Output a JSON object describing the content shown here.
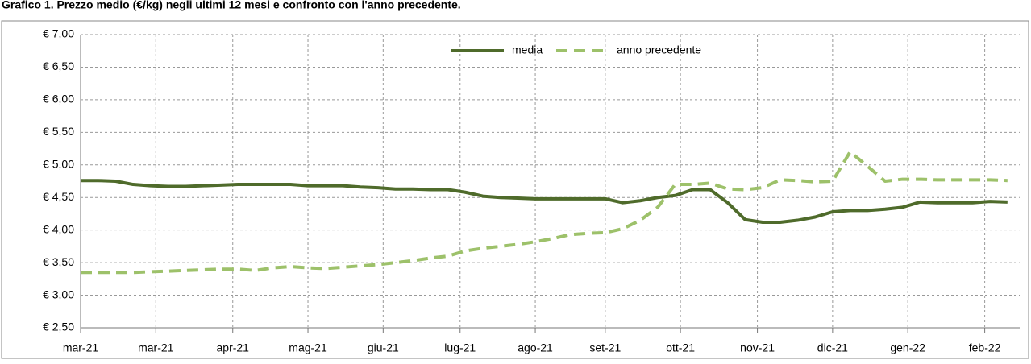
{
  "chart_data": {
    "type": "line",
    "title": "Grafico 1. Prezzo medio (€/kg) negli ultimi 12 mesi e confronto con l'anno precedente.",
    "x": [
      0,
      1,
      2,
      3,
      4,
      5,
      6,
      7,
      8,
      9,
      10,
      11,
      12,
      13,
      14,
      15,
      16,
      17,
      18,
      19,
      20,
      21,
      22,
      23,
      24,
      25,
      26,
      27,
      28,
      29,
      30,
      31,
      32,
      33,
      34,
      35,
      36,
      37,
      38,
      39,
      40,
      41,
      42,
      43,
      44,
      45,
      46,
      47,
      48,
      49,
      50,
      51,
      52,
      53
    ],
    "xlim": [
      0,
      53.7
    ],
    "xticks": [
      {
        "value": 0,
        "label": "mar-21"
      },
      {
        "value": 4.3,
        "label": "mar-21"
      },
      {
        "value": 8.7,
        "label": "apr-21"
      },
      {
        "value": 13,
        "label": "mag-21"
      },
      {
        "value": 17.3,
        "label": "giu-21"
      },
      {
        "value": 21.7,
        "label": "lug-21"
      },
      {
        "value": 26,
        "label": "ago-21"
      },
      {
        "value": 30,
        "label": "set-21"
      },
      {
        "value": 34.3,
        "label": "ott-21"
      },
      {
        "value": 38.7,
        "label": "nov-21"
      },
      {
        "value": 43,
        "label": "dic-21"
      },
      {
        "value": 47.3,
        "label": "gen-22"
      },
      {
        "value": 51.7,
        "label": "feb-22"
      }
    ],
    "ylim": [
      2.5,
      7
    ],
    "yticks": [
      {
        "value": 2.5,
        "label": "€ 2,50"
      },
      {
        "value": 3,
        "label": "€ 3,00"
      },
      {
        "value": 3.5,
        "label": "€ 3,50"
      },
      {
        "value": 4,
        "label": "€ 4,00"
      },
      {
        "value": 4.5,
        "label": "€ 4,50"
      },
      {
        "value": 5,
        "label": "€ 5,00"
      },
      {
        "value": 5.5,
        "label": "€ 5,50"
      },
      {
        "value": 6,
        "label": "€ 6,00"
      },
      {
        "value": 6.5,
        "label": "€ 6,50"
      },
      {
        "value": 7,
        "label": "€ 7,00"
      }
    ],
    "grid": true,
    "legend": "top",
    "series": [
      {
        "name": "media",
        "color": "#4f6b2b",
        "dashed": false,
        "values": [
          4.76,
          4.76,
          4.75,
          4.7,
          4.68,
          4.67,
          4.67,
          4.68,
          4.69,
          4.7,
          4.7,
          4.7,
          4.7,
          4.68,
          4.68,
          4.68,
          4.66,
          4.65,
          4.63,
          4.63,
          4.62,
          4.62,
          4.58,
          4.52,
          4.5,
          4.49,
          4.48,
          4.48,
          4.48,
          4.48,
          4.48,
          4.42,
          4.45,
          4.5,
          4.53,
          4.62,
          4.62,
          4.42,
          4.16,
          4.12,
          4.12,
          4.15,
          4.2,
          4.28,
          4.3,
          4.3,
          4.32,
          4.35,
          4.43,
          4.42,
          4.42,
          4.42,
          4.44,
          4.43
        ]
      },
      {
        "name": "anno precedente",
        "color": "#9dc16a",
        "dashed": true,
        "values": [
          3.35,
          3.35,
          3.35,
          3.35,
          3.36,
          3.37,
          3.38,
          3.39,
          3.4,
          3.4,
          3.38,
          3.42,
          3.44,
          3.42,
          3.41,
          3.43,
          3.45,
          3.47,
          3.5,
          3.53,
          3.57,
          3.6,
          3.68,
          3.72,
          3.75,
          3.78,
          3.82,
          3.87,
          3.93,
          3.95,
          3.96,
          4.02,
          4.15,
          4.35,
          4.7,
          4.7,
          4.72,
          4.63,
          4.62,
          4.65,
          4.77,
          4.76,
          4.74,
          4.75,
          5.2,
          4.98,
          4.75,
          4.78,
          4.78,
          4.77,
          4.77,
          4.77,
          4.77,
          4.76
        ]
      }
    ]
  }
}
